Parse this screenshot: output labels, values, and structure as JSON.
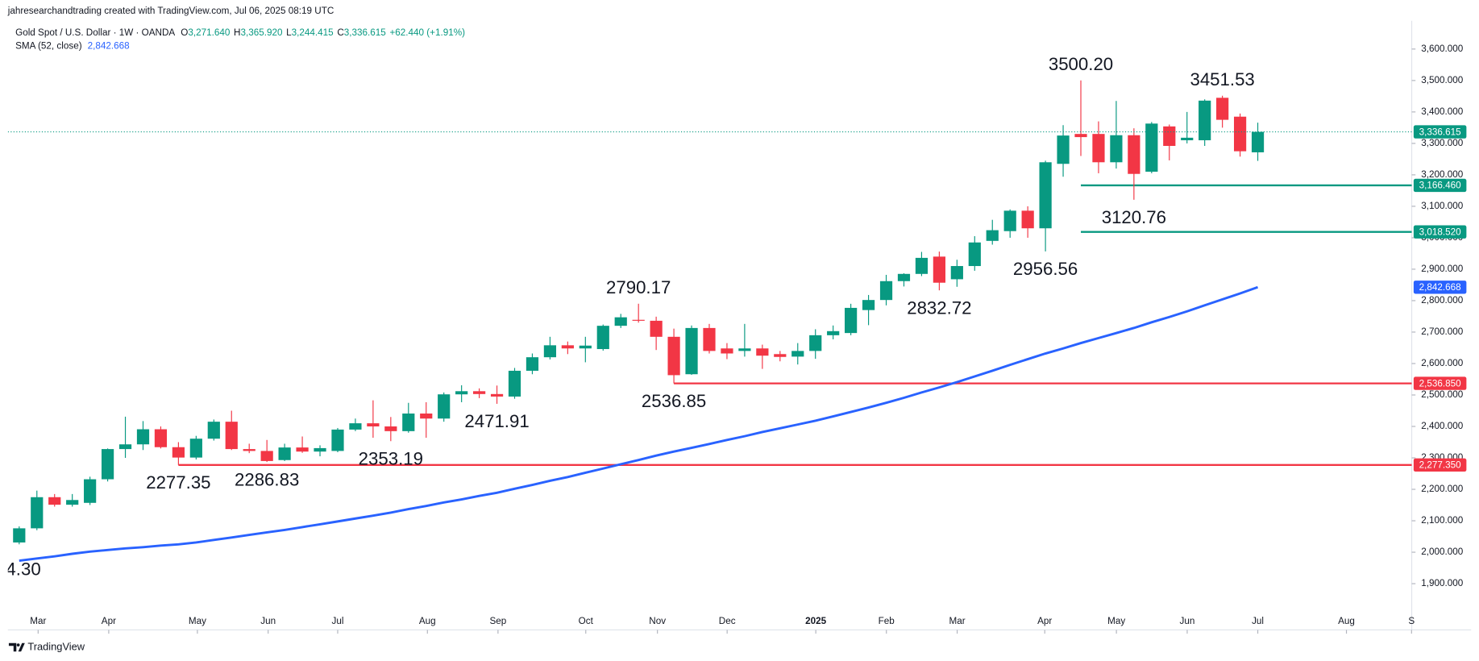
{
  "chart_data": {
    "type": "candlestick",
    "watermark": "jahresearchandtrading created with TradingView.com, Jul 06, 2025 08:19 UTC",
    "title": "Gold Spot / U.S. Dollar · 1W · OANDA",
    "ohlc_legend": [
      {
        "key": "O",
        "value": "3,271.640"
      },
      {
        "key": "H",
        "value": "3,365.920"
      },
      {
        "key": "L",
        "value": "3,244.415"
      },
      {
        "key": "C",
        "value": "3,336.615"
      }
    ],
    "change": "+62.440 (+1.91%)",
    "brand": "TradingView",
    "up_color": "#089981",
    "down_color": "#f23645",
    "open": [
      2031,
      2076,
      2175,
      2151,
      2157,
      2232,
      2328,
      2343,
      2391,
      2334,
      2301,
      2361,
      2415,
      2328,
      2322,
      2293,
      2333,
      2320,
      2322,
      2390,
      2410,
      2400,
      2385,
      2441,
      2425,
      2502,
      2512,
      2503,
      2495,
      2577,
      2620,
      2658,
      2648,
      2646,
      2720,
      2739,
      2736,
      2685,
      2566,
      2713,
      2648,
      2640,
      2648,
      2630,
      2622,
      2640,
      2690,
      2697,
      2770,
      2802,
      2862,
      2885,
      2940,
      2868,
      2910,
      2990,
      3021,
      3086,
      3030,
      3235,
      3330,
      3330,
      3240,
      3326,
      3210,
      3354,
      3310,
      3310,
      3445,
      3385,
      3271.64
    ],
    "high": [
      2082,
      2196,
      2185,
      2185,
      2240,
      2330,
      2431,
      2417,
      2400,
      2350,
      2370,
      2422,
      2450,
      2345,
      2357,
      2345,
      2368,
      2340,
      2395,
      2425,
      2483,
      2430,
      2475,
      2477,
      2508,
      2531,
      2521,
      2530,
      2586,
      2632,
      2685,
      2670,
      2685,
      2724,
      2758,
      2790.17,
      2749,
      2711,
      2721,
      2726,
      2665,
      2726,
      2660,
      2640,
      2665,
      2709,
      2721,
      2790,
      2818,
      2882,
      2887,
      2955,
      2956,
      2930,
      3005,
      3057,
      3090,
      3100,
      3245,
      3358,
      3500.2,
      3370,
      3435,
      3348,
      3368,
      3360,
      3400,
      3440,
      3451.53,
      3395,
      3365.92
    ],
    "low": [
      2025,
      2070,
      2145,
      2145,
      2150,
      2225,
      2300,
      2325,
      2330,
      2277.35,
      2295,
      2355,
      2325,
      2315,
      2286.83,
      2290,
      2316,
      2305,
      2318,
      2385,
      2364,
      2353.19,
      2380,
      2364,
      2415,
      2477,
      2490,
      2471.91,
      2488,
      2566,
      2613,
      2630,
      2604,
      2641,
      2713,
      2730,
      2643,
      2536.85,
      2564,
      2632,
      2614,
      2622,
      2583,
      2607,
      2597,
      2615,
      2677,
      2690,
      2722,
      2785,
      2845,
      2878,
      2832.72,
      2844,
      2895,
      2978,
      3000,
      3000,
      2956.56,
      3194,
      3260,
      3205,
      3220,
      3120.76,
      3205,
      3246,
      3300,
      3292,
      3350,
      3258,
      3244.415
    ],
    "close": [
      2076,
      2175,
      2151,
      2166,
      2232,
      2328,
      2343,
      2391,
      2334,
      2301,
      2361,
      2415,
      2328,
      2322,
      2290,
      2333,
      2320,
      2331,
      2390,
      2410,
      2400,
      2385,
      2441,
      2425,
      2502,
      2512,
      2503,
      2495,
      2577,
      2620,
      2658,
      2648,
      2657,
      2720,
      2747,
      2736,
      2685,
      2563,
      2713,
      2640,
      2632,
      2648,
      2625,
      2621,
      2640,
      2690,
      2703,
      2777,
      2802,
      2862,
      2885,
      2936,
      2857,
      2910,
      2985,
      3024,
      3086,
      3030,
      3240,
      3325,
      3320,
      3240,
      3326,
      3203,
      3363,
      3292,
      3318,
      3436,
      3375,
      3275,
      3336.615
    ],
    "sma": {
      "name": "SMA (52, close)",
      "color": "#2962ff",
      "value_label": "2,842.668",
      "values": [
        1973,
        1980,
        1987,
        1995,
        2002,
        2007,
        2012,
        2016,
        2021,
        2025,
        2031,
        2039,
        2047,
        2055,
        2063,
        2071,
        2080,
        2089,
        2098,
        2107,
        2116,
        2126,
        2137,
        2147,
        2158,
        2168,
        2179,
        2189,
        2202,
        2214,
        2227,
        2239,
        2253,
        2266,
        2280,
        2293,
        2307,
        2320,
        2332,
        2344,
        2357,
        2369,
        2382,
        2394,
        2406,
        2418,
        2432,
        2446,
        2460,
        2475,
        2491,
        2508,
        2524,
        2541,
        2559,
        2577,
        2596,
        2614,
        2632,
        2648,
        2665,
        2681,
        2697,
        2713,
        2731,
        2748,
        2766,
        2785,
        2804,
        2823,
        2842.668
      ]
    },
    "ylim": [
      1822,
      3690
    ],
    "yticks": [
      {
        "value": 1900,
        "label": "1,900.000"
      },
      {
        "value": 2000,
        "label": "2,000.000"
      },
      {
        "value": 2100,
        "label": "2,100.000"
      },
      {
        "value": 2200,
        "label": "2,200.000"
      },
      {
        "value": 2300,
        "label": "2,300.000"
      },
      {
        "value": 2400,
        "label": "2,400.000"
      },
      {
        "value": 2500,
        "label": "2,500.000"
      },
      {
        "value": 2600,
        "label": "2,600.000"
      },
      {
        "value": 2700,
        "label": "2,700.000"
      },
      {
        "value": 2800,
        "label": "2,800.000"
      },
      {
        "value": 2900,
        "label": "2,900.000"
      },
      {
        "value": 3000,
        "label": "3,000.000"
      },
      {
        "value": 3100,
        "label": "3,100.000"
      },
      {
        "value": 3200,
        "label": "3,200.000"
      },
      {
        "value": 3300,
        "label": "3,300.000"
      },
      {
        "value": 3400,
        "label": "3,400.000"
      },
      {
        "value": 3500,
        "label": "3,500.000"
      },
      {
        "value": 3600,
        "label": "3,600.000"
      }
    ],
    "xlim": [
      -0.64,
      78.7
    ],
    "xticks": [
      {
        "value": 1.07,
        "label": "Mar"
      },
      {
        "value": 5.06,
        "label": "Apr"
      },
      {
        "value": 10.07,
        "label": "May"
      },
      {
        "value": 14.07,
        "label": "Jun"
      },
      {
        "value": 18.0,
        "label": "Jul"
      },
      {
        "value": 23.07,
        "label": "Aug"
      },
      {
        "value": 27.06,
        "label": "Sep"
      },
      {
        "value": 32.02,
        "label": "Oct"
      },
      {
        "value": 36.07,
        "label": "Nov"
      },
      {
        "value": 40.01,
        "label": "Dec"
      },
      {
        "value": 45.02,
        "label": "2025"
      },
      {
        "value": 49.01,
        "label": "Feb"
      },
      {
        "value": 53.01,
        "label": "Mar"
      },
      {
        "value": 57.96,
        "label": "Apr"
      },
      {
        "value": 62.01,
        "label": "May"
      },
      {
        "value": 66.01,
        "label": "Jun"
      },
      {
        "value": 70.0,
        "label": "Jul"
      },
      {
        "value": 75.01,
        "label": "Aug"
      },
      {
        "value": 78.69,
        "label": "S"
      }
    ],
    "hlines": [
      {
        "value": 3166.46,
        "label": "3,166.460",
        "color": "#089981",
        "start": 60
      },
      {
        "value": 3018.52,
        "label": "3,018.520",
        "color": "#089981",
        "start": 60
      },
      {
        "value": 2536.85,
        "label": "2,536.850",
        "color": "#f23645",
        "start": 37
      },
      {
        "value": 2277.35,
        "label": "2,277.350",
        "color": "#f23645",
        "start": 9
      }
    ],
    "annotations": [
      {
        "label": "3500.20",
        "value": 3500.2,
        "index": 60,
        "side": "above"
      },
      {
        "label": "3451.53",
        "value": 3451.53,
        "index": 68,
        "side": "above"
      },
      {
        "label": "3120.76",
        "value": 3120.76,
        "index": 63,
        "side": "below"
      },
      {
        "label": "2956.56",
        "value": 2956.56,
        "index": 58,
        "side": "below"
      },
      {
        "label": "2832.72",
        "value": 2832.72,
        "index": 52,
        "side": "below"
      },
      {
        "label": "2790.17",
        "value": 2790.17,
        "index": 35,
        "side": "above"
      },
      {
        "label": "2536.85",
        "value": 2536.85,
        "index": 37,
        "side": "below"
      },
      {
        "label": "2471.91",
        "value": 2471.91,
        "index": 27,
        "side": "below"
      },
      {
        "label": "2353.19",
        "value": 2353.19,
        "index": 21,
        "side": "below"
      },
      {
        "label": "2286.83",
        "value": 2286.83,
        "index": 14,
        "side": "below"
      },
      {
        "label": "2277.35",
        "value": 2277.35,
        "index": 9,
        "side": "below"
      },
      {
        "label": "4.30"
      }
    ]
  }
}
